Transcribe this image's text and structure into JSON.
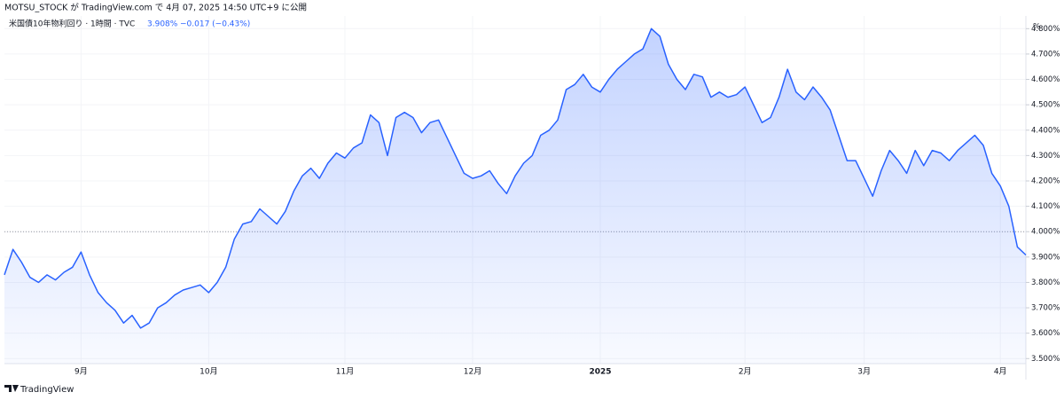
{
  "header": "MOTSU_STOCK が TradingView.com で 4月 07, 2025 14:50 UTC+9 に公開",
  "legend": {
    "symbol": "米国債10年物利回り · 1時間 · TVC",
    "last": "3.908%",
    "change": "−0.017 (−0.43%)"
  },
  "axis_unit": "%",
  "footer": "TradingView",
  "chart_data": {
    "type": "area",
    "categories": [
      null,
      null,
      null,
      null,
      null,
      null,
      null,
      null,
      null,
      "9月",
      null,
      null,
      null,
      null,
      null,
      null,
      null,
      null,
      null,
      null,
      null,
      null,
      null,
      null,
      "10月",
      null,
      null,
      null,
      null,
      null,
      null,
      null,
      null,
      null,
      null,
      null,
      null,
      null,
      null,
      null,
      "11月",
      null,
      null,
      null,
      null,
      null,
      null,
      null,
      null,
      null,
      null,
      null,
      null,
      null,
      null,
      "12月",
      null,
      null,
      null,
      null,
      null,
      null,
      null,
      null,
      null,
      null,
      null,
      null,
      null,
      null,
      "2025",
      null,
      null,
      null,
      null,
      null,
      null,
      null,
      null,
      null,
      null,
      null,
      null,
      null,
      null,
      null,
      null,
      "2月",
      null,
      null,
      null,
      null,
      null,
      null,
      null,
      null,
      null,
      null,
      null,
      null,
      null,
      "3月",
      null,
      null,
      null,
      null,
      null,
      null,
      null,
      null,
      null,
      null,
      null,
      null,
      null,
      null,
      null,
      "4月",
      null,
      null,
      null
    ],
    "series": [
      {
        "name": "米国債10年物利回り",
        "color": "#2962ff",
        "values": [
          3.83,
          3.93,
          3.88,
          3.82,
          3.8,
          3.83,
          3.81,
          3.84,
          3.86,
          3.92,
          3.83,
          3.76,
          3.72,
          3.69,
          3.64,
          3.67,
          3.62,
          3.64,
          3.7,
          3.72,
          3.75,
          3.77,
          3.78,
          3.79,
          3.76,
          3.8,
          3.86,
          3.97,
          4.03,
          4.04,
          4.09,
          4.06,
          4.03,
          4.08,
          4.16,
          4.22,
          4.25,
          4.21,
          4.27,
          4.31,
          4.29,
          4.33,
          4.35,
          4.46,
          4.43,
          4.3,
          4.45,
          4.47,
          4.45,
          4.39,
          4.43,
          4.44,
          4.37,
          4.3,
          4.23,
          4.21,
          4.22,
          4.24,
          4.19,
          4.15,
          4.22,
          4.27,
          4.3,
          4.38,
          4.4,
          4.44,
          4.56,
          4.58,
          4.62,
          4.57,
          4.55,
          4.6,
          4.64,
          4.67,
          4.7,
          4.72,
          4.8,
          4.77,
          4.66,
          4.6,
          4.56,
          4.62,
          4.61,
          4.53,
          4.55,
          4.53,
          4.54,
          4.57,
          4.5,
          4.43,
          4.45,
          4.53,
          4.64,
          4.55,
          4.52,
          4.57,
          4.53,
          4.48,
          4.38,
          4.28,
          4.28,
          4.21,
          4.14,
          4.24,
          4.32,
          4.28,
          4.23,
          4.32,
          4.26,
          4.32,
          4.31,
          4.28,
          4.32,
          4.35,
          4.38,
          4.34,
          4.23,
          4.18,
          4.1,
          3.94,
          3.908
        ]
      }
    ],
    "ylim": [
      3.48,
      4.85
    ],
    "yticks": [
      {
        "value": 3.5,
        "label": "3.500%"
      },
      {
        "value": 3.6,
        "label": "3.600%"
      },
      {
        "value": 3.7,
        "label": "3.700%"
      },
      {
        "value": 3.8,
        "label": "3.800%"
      },
      {
        "value": 3.9,
        "label": "3.900%"
      },
      {
        "value": 4.0,
        "label": "4.000%"
      },
      {
        "value": 4.1,
        "label": "4.100%"
      },
      {
        "value": 4.2,
        "label": "4.200%"
      },
      {
        "value": 4.3,
        "label": "4.300%"
      },
      {
        "value": 4.4,
        "label": "4.400%"
      },
      {
        "value": 4.5,
        "label": "4.500%"
      },
      {
        "value": 4.6,
        "label": "4.600%"
      },
      {
        "value": 4.7,
        "label": "4.700%"
      },
      {
        "value": 4.8,
        "label": "4.800%"
      }
    ],
    "reference_line": 4.0,
    "grid": true
  }
}
